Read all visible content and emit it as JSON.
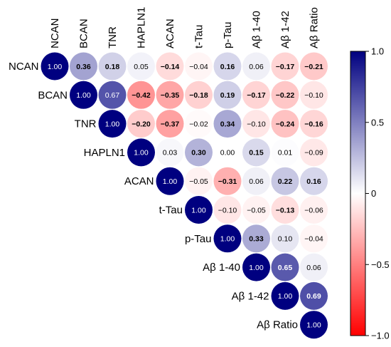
{
  "chart_data": {
    "type": "heatmap",
    "variables": [
      "NCAN",
      "BCAN",
      "TNR",
      "HAPLN1",
      "ACAN",
      "t-Tau",
      "p-Tau",
      "Aβ 1-40",
      "Aβ 1-42",
      "Aβ Ratio"
    ],
    "matrix_upper": [
      [
        "1.00",
        "0.36",
        "0.18",
        "0.05",
        "−0.14",
        "−0.04",
        "0.16",
        "0.06",
        "−0.17",
        "−0.21"
      ],
      [
        "1.00",
        "0.67",
        "−0.42",
        "−0.35",
        "−0.18",
        "0.19",
        "−0.17",
        "−0.22",
        "−0.10"
      ],
      [
        "1.00",
        "−0.20",
        "−0.37",
        "−0.02",
        "0.34",
        "−0.10",
        "−0.24",
        "−0.16"
      ],
      [
        "1.00",
        "0.03",
        "0.30",
        "0.00",
        "0.15",
        "0.01",
        "−0.09"
      ],
      [
        "1.00",
        "−0.05",
        "−0.31",
        "0.06",
        "0.22",
        "0.16"
      ],
      [
        "1.00",
        "−0.10",
        "−0.05",
        "−0.13",
        "−0.06"
      ],
      [
        "1.00",
        "0.33",
        "0.10",
        "−0.04"
      ],
      [
        "1.00",
        "0.65",
        "0.06"
      ],
      [
        "1.00",
        "0.69"
      ],
      [
        "1.00"
      ]
    ],
    "significant_upper": [
      [
        false,
        true,
        true,
        false,
        true,
        false,
        true,
        false,
        true,
        true
      ],
      [
        false,
        false,
        true,
        true,
        true,
        true,
        true,
        true,
        false
      ],
      [
        false,
        true,
        true,
        false,
        true,
        false,
        true,
        true
      ],
      [
        false,
        false,
        true,
        false,
        true,
        false,
        false
      ],
      [
        false,
        false,
        true,
        false,
        true,
        true
      ],
      [
        false,
        false,
        false,
        true,
        false
      ],
      [
        false,
        true,
        false,
        false
      ],
      [
        false,
        true,
        false
      ],
      [
        false,
        true
      ],
      [
        false
      ]
    ],
    "colorbar": {
      "range": [
        -1.0,
        1.0
      ],
      "ticks": [
        1.0,
        0.5,
        0,
        -0.5,
        -1.0
      ],
      "tick_labels": [
        "1.0",
        "0.5",
        "0",
        "−0.5",
        "−1.0"
      ],
      "low_color": "#ff0000",
      "mid_color": "#ffffff",
      "high_color": "#000080"
    },
    "marker": "circle",
    "layout": "upper-triangle"
  }
}
